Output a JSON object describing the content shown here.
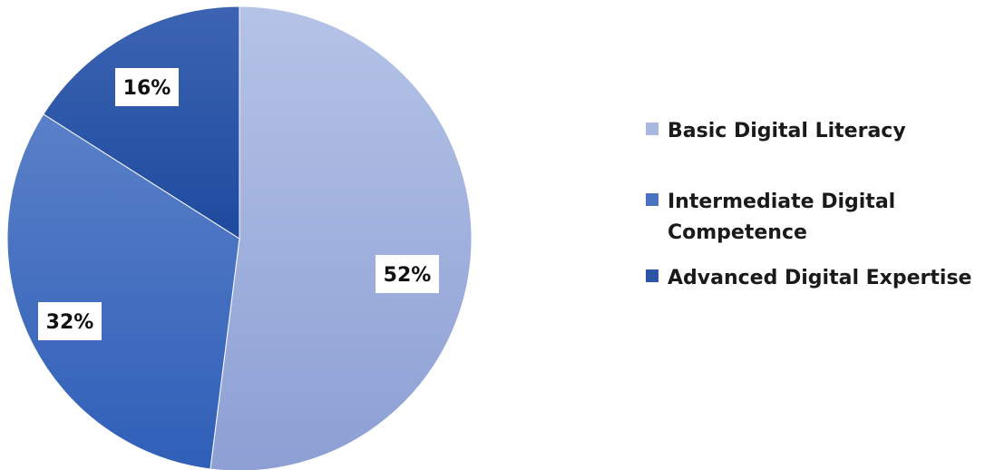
{
  "chart_data": {
    "type": "pie",
    "title": "",
    "legend_position": "right",
    "slices": [
      {
        "name": "Basic Digital Literacy",
        "value": 52,
        "label": "52%",
        "color": "#a8b8df"
      },
      {
        "name": "Intermediate Digital Competence",
        "value": 32,
        "label": "32%",
        "color": "#4a72c0"
      },
      {
        "name": "Advanced Digital Expertise",
        "value": 16,
        "label": "16%",
        "color": "#2c55a6"
      }
    ]
  }
}
